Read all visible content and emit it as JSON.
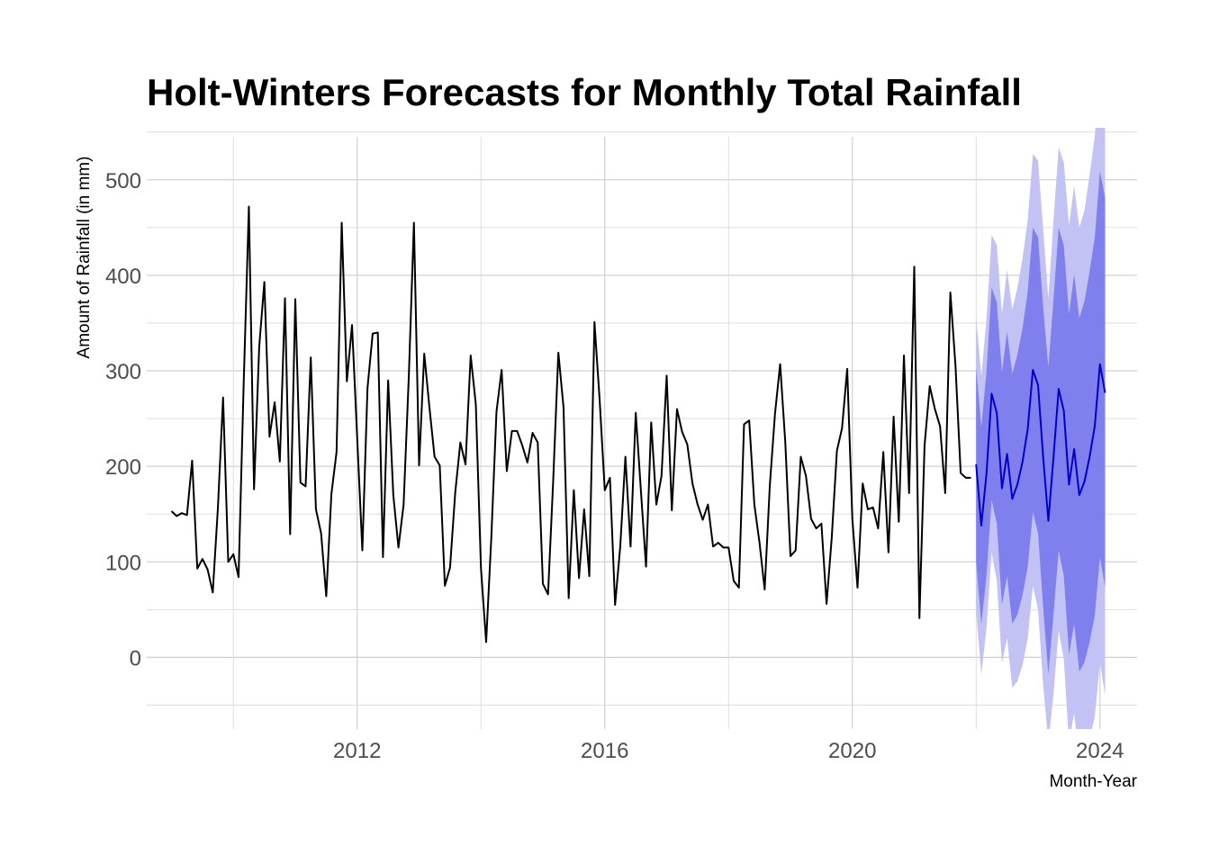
{
  "chart_data": {
    "type": "line",
    "title": "Holt-Winters Forecasts for Monthly Total Rainfall",
    "xlabel": "Month-Year",
    "ylabel": "Amount of Rainfall (in mm)",
    "xlim": [
      2008.6,
      2024.6
    ],
    "ylim": [
      -75,
      545
    ],
    "x_ticks": [
      {
        "value": 2012,
        "label": "2012"
      },
      {
        "value": 2016,
        "label": "2016"
      },
      {
        "value": 2020,
        "label": "2020"
      },
      {
        "value": 2024,
        "label": "2024"
      }
    ],
    "y_ticks": [
      {
        "value": 0,
        "label": "0"
      },
      {
        "value": 100,
        "label": "100"
      },
      {
        "value": 200,
        "label": "200"
      },
      {
        "value": 300,
        "label": "300"
      },
      {
        "value": 400,
        "label": "400"
      },
      {
        "value": 500,
        "label": "500"
      }
    ],
    "grid": true,
    "legend": "none",
    "colors": {
      "observed": "#000000",
      "forecast": "#0000cc",
      "band_95": "#c2c2f5",
      "band_80": "#7f7fee"
    },
    "series": [
      {
        "role": "observed",
        "start": "2009-01",
        "values": [
          153,
          148,
          151,
          149,
          206,
          93,
          103,
          92,
          68,
          157,
          272,
          100,
          108,
          84,
          288,
          472,
          176,
          325,
          393,
          231,
          267,
          205,
          376,
          129,
          375,
          183,
          179,
          314,
          155,
          130,
          64,
          171,
          215,
          455,
          289,
          348,
          230,
          112,
          282,
          339,
          340,
          105,
          290,
          170,
          115,
          160,
          293,
          455,
          201,
          318,
          262,
          210,
          201,
          75,
          94,
          172,
          225,
          202,
          316,
          265,
          93,
          16,
          125,
          257,
          301,
          195,
          237,
          237,
          222,
          204,
          235,
          225,
          77,
          66,
          185,
          319,
          262,
          62,
          175,
          83,
          155,
          85,
          351,
          270,
          175,
          188,
          55,
          116,
          210,
          116,
          256,
          175,
          95,
          246,
          160,
          190,
          295,
          154,
          260,
          236,
          223,
          182,
          160,
          144,
          160,
          116,
          120,
          115,
          115,
          80,
          73,
          244,
          248,
          160,
          120,
          71,
          180,
          255,
          307,
          225,
          106,
          112,
          210,
          190,
          145,
          135,
          140,
          56,
          125,
          216,
          240,
          302,
          145,
          73,
          182,
          155,
          157,
          135,
          215,
          110,
          252,
          142,
          316,
          172,
          409,
          41,
          222,
          284,
          260,
          242,
          172,
          382,
          305,
          193,
          188,
          188
        ]
      },
      {
        "role": "forecast",
        "start": "2022-01",
        "mean": [
          202,
          138,
          192,
          276,
          256,
          177,
          213,
          166,
          181,
          205,
          239,
          301,
          285,
          209,
          143,
          210,
          281,
          258,
          181,
          218,
          170,
          184,
          210,
          242,
          307,
          277
        ],
        "lo80": [
          100,
          35,
          85,
          165,
          140,
          55,
          85,
          35,
          45,
          65,
          95,
          152,
          130,
          52,
          -18,
          45,
          112,
          85,
          3,
          35,
          -15,
          -5,
          16,
          44,
          105,
          73
        ],
        "hi80": [
          304,
          241,
          299,
          387,
          372,
          299,
          341,
          297,
          317,
          345,
          383,
          450,
          440,
          366,
          304,
          375,
          450,
          431,
          359,
          401,
          355,
          373,
          404,
          440,
          509,
          481
        ],
        "lo95": [
          48,
          -18,
          30,
          110,
          80,
          -6,
          20,
          -32,
          -25,
          -8,
          20,
          75,
          50,
          -30,
          -90,
          -38,
          28,
          -2,
          -90,
          -58,
          -110,
          -100,
          -85,
          -62,
          -5,
          -40
        ],
        "hi95": [
          356,
          294,
          354,
          442,
          432,
          360,
          406,
          364,
          387,
          418,
          458,
          527,
          520,
          448,
          376,
          458,
          534,
          518,
          452,
          494,
          450,
          468,
          505,
          546,
          619,
          594
        ]
      }
    ]
  }
}
